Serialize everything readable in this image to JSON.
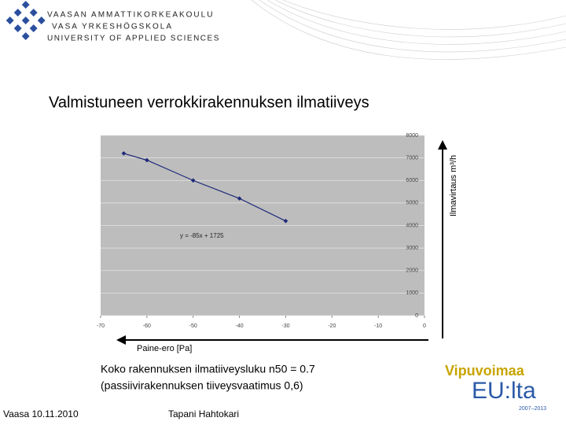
{
  "header": {
    "logo_lines": [
      "VAASAN AMMATTIKORKEAKOULU",
      "VASA YRKESHÖGSKOLA",
      "UNIVERSITY OF APPLIED SCIENCES"
    ]
  },
  "title": "Valmistuneen verrokkirakennuksen ilmatiiveys",
  "chart_data": {
    "type": "scatter",
    "x": [
      -65,
      -60,
      -50,
      -40,
      -30
    ],
    "values": [
      7200,
      6900,
      6000,
      5200,
      4200
    ],
    "color": "#1f2a7a",
    "xlim": [
      -70,
      0
    ],
    "xticks": [
      -70,
      -60,
      -50,
      -40,
      -30,
      -20,
      -10,
      0
    ],
    "ylim": [
      0,
      8000
    ],
    "yticks": [
      0,
      1000,
      2000,
      3000,
      4000,
      5000,
      6000,
      7000,
      8000
    ],
    "grid": true,
    "annotation": "y = -85x + 1725",
    "x_label": "Paine-ero [Pa]",
    "y_label": "Ilmavirtaus m³/h"
  },
  "body": [
    "Koko rakennuksen ilmatiiveysluku n50 = 0.7",
    "(passiivirakennuksen tiiveysvaatimus 0,6)"
  ],
  "eu_logo": {
    "line1": "Vipuvoimaa",
    "line2": "EU:lta",
    "years": "2007–2013"
  },
  "footer": {
    "date": "Vaasa 10.11.2010",
    "author": "Tapani Hahtokari"
  }
}
